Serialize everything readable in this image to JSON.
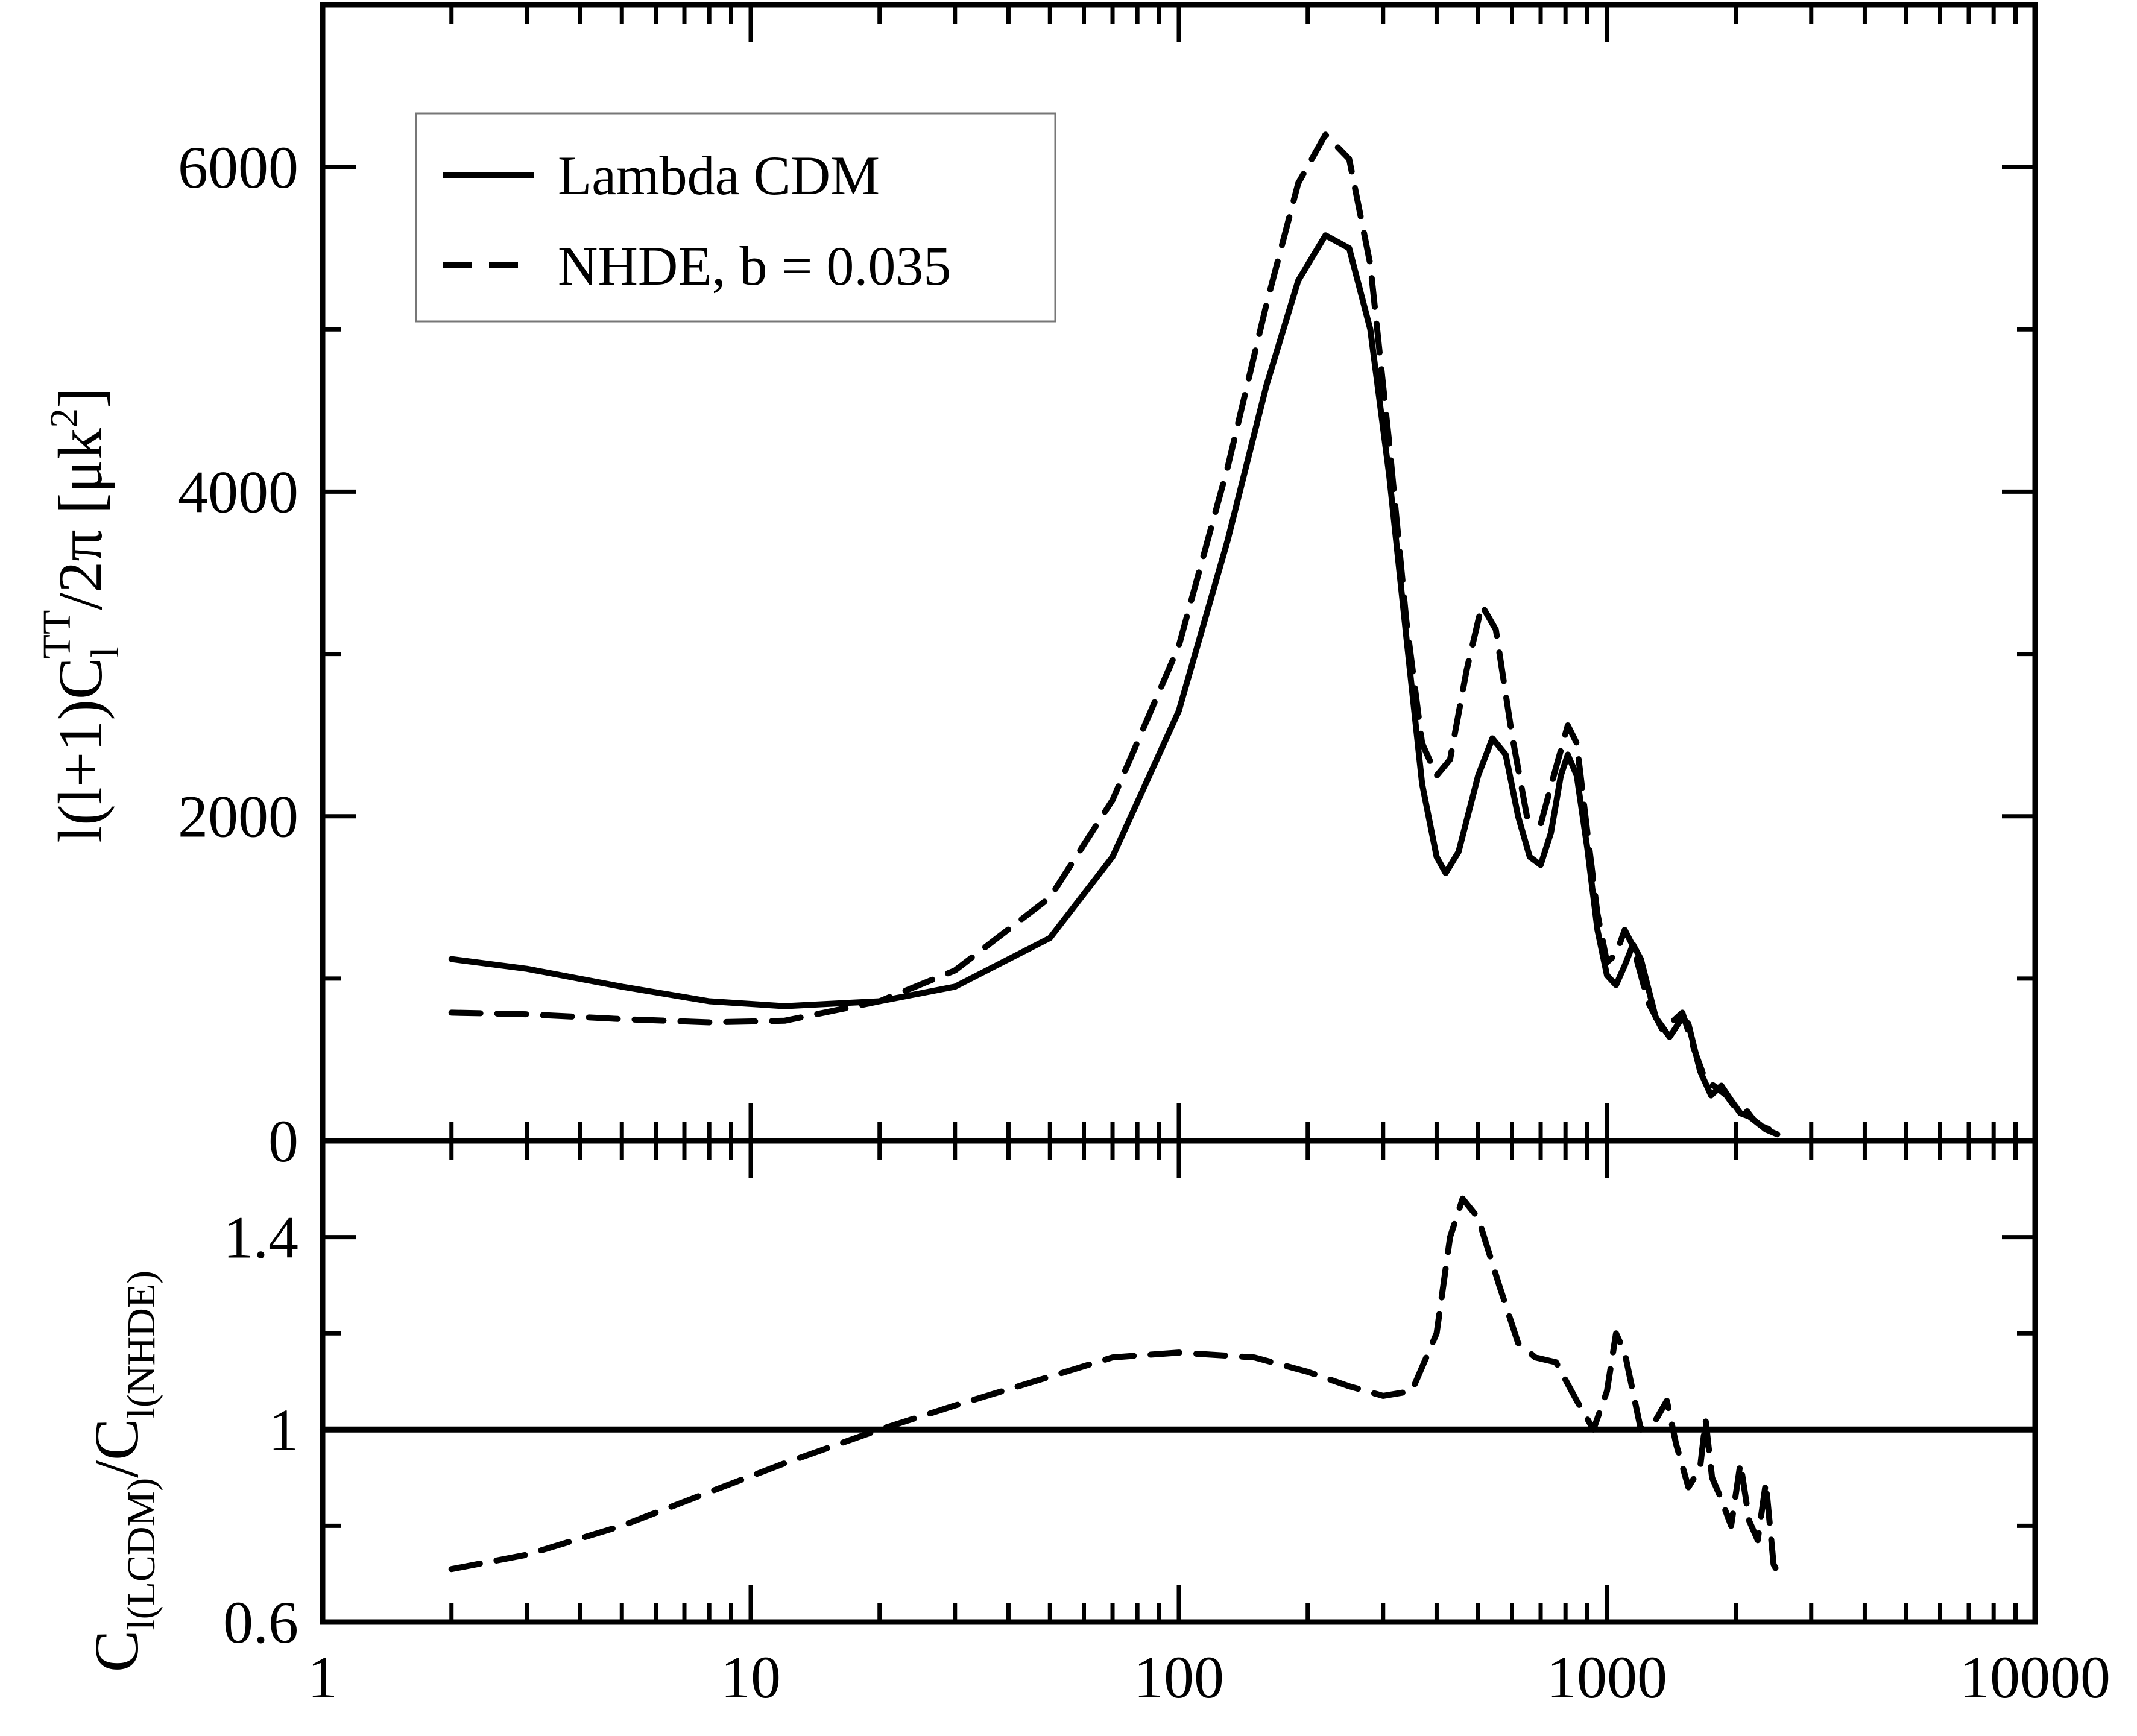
{
  "chart_data": [
    {
      "type": "line",
      "panel": "top",
      "xlabel": "",
      "ylabel": "l(l+1)C_l^TT/2π [μk^2]",
      "ylabel_parts": {
        "prefix": "l(l+1)C",
        "sub": "l",
        "sup": "TT",
        "mid": "/2π [μk",
        "sup2": "2",
        "suffix": "]"
      },
      "x_scale": "log",
      "xlim": [
        1,
        10000
      ],
      "ylim": [
        0,
        7000
      ],
      "y_tick_labels": [
        "0",
        "2000",
        "4000",
        "6000"
      ],
      "legend": {
        "position": "top-left",
        "entries": [
          "Lambda CDM",
          "NHDE, b = 0.035"
        ]
      },
      "series": [
        {
          "name": "Lambda CDM",
          "style": "solid",
          "points": [
            [
              2,
              1120
            ],
            [
              3,
              1060
            ],
            [
              5,
              950
            ],
            [
              8,
              860
            ],
            [
              12,
              830
            ],
            [
              20,
              860
            ],
            [
              30,
              950
            ],
            [
              50,
              1250
            ],
            [
              70,
              1750
            ],
            [
              100,
              2650
            ],
            [
              130,
              3700
            ],
            [
              160,
              4650
            ],
            [
              190,
              5300
            ],
            [
              220,
              5580
            ],
            [
              250,
              5500
            ],
            [
              280,
              5000
            ],
            [
              310,
              4100
            ],
            [
              340,
              3100
            ],
            [
              370,
              2200
            ],
            [
              400,
              1750
            ],
            [
              420,
              1650
            ],
            [
              450,
              1780
            ],
            [
              500,
              2250
            ],
            [
              540,
              2480
            ],
            [
              580,
              2380
            ],
            [
              620,
              2000
            ],
            [
              660,
              1750
            ],
            [
              700,
              1700
            ],
            [
              740,
              1900
            ],
            [
              780,
              2250
            ],
            [
              810,
              2380
            ],
            [
              850,
              2250
            ],
            [
              900,
              1800
            ],
            [
              950,
              1300
            ],
            [
              1000,
              1020
            ],
            [
              1050,
              960
            ],
            [
              1100,
              1080
            ],
            [
              1150,
              1210
            ],
            [
              1200,
              1120
            ],
            [
              1300,
              760
            ],
            [
              1400,
              640
            ],
            [
              1500,
              760
            ],
            [
              1550,
              720
            ],
            [
              1650,
              430
            ],
            [
              1750,
              280
            ],
            [
              1850,
              340
            ],
            [
              1950,
              250
            ],
            [
              2050,
              170
            ],
            [
              2150,
              150
            ],
            [
              2250,
              110
            ],
            [
              2350,
              70
            ],
            [
              2500,
              40
            ]
          ]
        },
        {
          "name": "NHDE, b = 0.035",
          "style": "dashed",
          "points": [
            [
              2,
              790
            ],
            [
              3,
              780
            ],
            [
              5,
              750
            ],
            [
              8,
              730
            ],
            [
              12,
              740
            ],
            [
              20,
              860
            ],
            [
              30,
              1050
            ],
            [
              50,
              1500
            ],
            [
              70,
              2100
            ],
            [
              100,
              3050
            ],
            [
              130,
              4150
            ],
            [
              160,
              5150
            ],
            [
              190,
              5900
            ],
            [
              220,
              6200
            ],
            [
              250,
              6050
            ],
            [
              280,
              5400
            ],
            [
              310,
              4300
            ],
            [
              340,
              3200
            ],
            [
              370,
              2450
            ],
            [
              400,
              2250
            ],
            [
              430,
              2350
            ],
            [
              470,
              2900
            ],
            [
              510,
              3300
            ],
            [
              550,
              3150
            ],
            [
              600,
              2500
            ],
            [
              650,
              2000
            ],
            [
              700,
              1950
            ],
            [
              760,
              2300
            ],
            [
              810,
              2560
            ],
            [
              850,
              2450
            ],
            [
              900,
              1900
            ],
            [
              950,
              1400
            ],
            [
              1000,
              1100
            ],
            [
              1050,
              1150
            ],
            [
              1100,
              1300
            ],
            [
              1150,
              1200
            ],
            [
              1250,
              850
            ],
            [
              1350,
              680
            ],
            [
              1500,
              790
            ],
            [
              1600,
              560
            ],
            [
              1700,
              370
            ],
            [
              1800,
              330
            ],
            [
              1900,
              280
            ],
            [
              2000,
              200
            ],
            [
              2100,
              200
            ],
            [
              2200,
              130
            ],
            [
              2300,
              90
            ],
            [
              2500,
              50
            ]
          ]
        }
      ]
    },
    {
      "type": "line",
      "panel": "bottom",
      "xlabel": "",
      "ylabel": "C_l(LCDM)/C_l(NHDE)",
      "ylabel_parts": {
        "c1": "C",
        "sub1": "l(LCDM)",
        "slash": "/C",
        "sub2": "l(NHDE)"
      },
      "x_scale": "log",
      "xlim": [
        1,
        10000
      ],
      "ylim": [
        0.6,
        1.6
      ],
      "x_tick_labels": [
        "1",
        "10",
        "100",
        "1000",
        "10000"
      ],
      "y_tick_labels": [
        "0.6",
        "1",
        "1.4"
      ],
      "series": [
        {
          "name": "",
          "style": "solid",
          "points": [
            [
              1,
              1.0
            ],
            [
              10000,
              1.0
            ]
          ]
        },
        {
          "name": "",
          "style": "dashed",
          "points": [
            [
              2,
              0.71
            ],
            [
              3,
              0.74
            ],
            [
              5,
              0.8
            ],
            [
              8,
              0.87
            ],
            [
              12,
              0.93
            ],
            [
              20,
              1.0
            ],
            [
              30,
              1.05
            ],
            [
              50,
              1.11
            ],
            [
              70,
              1.15
            ],
            [
              100,
              1.16
            ],
            [
              150,
              1.15
            ],
            [
              200,
              1.12
            ],
            [
              250,
              1.09
            ],
            [
              300,
              1.07
            ],
            [
              350,
              1.08
            ],
            [
              400,
              1.2
            ],
            [
              430,
              1.4
            ],
            [
              460,
              1.48
            ],
            [
              500,
              1.44
            ],
            [
              560,
              1.3
            ],
            [
              620,
              1.18
            ],
            [
              680,
              1.15
            ],
            [
              760,
              1.14
            ],
            [
              850,
              1.06
            ],
            [
              930,
              1.0
            ],
            [
              1000,
              1.08
            ],
            [
              1050,
              1.2
            ],
            [
              1100,
              1.16
            ],
            [
              1200,
              1.0
            ],
            [
              1300,
              1.02
            ],
            [
              1380,
              1.06
            ],
            [
              1450,
              0.97
            ],
            [
              1550,
              0.88
            ],
            [
              1650,
              0.92
            ],
            [
              1700,
              1.02
            ],
            [
              1760,
              0.9
            ],
            [
              1840,
              0.86
            ],
            [
              1950,
              0.8
            ],
            [
              2050,
              0.93
            ],
            [
              2150,
              0.81
            ],
            [
              2250,
              0.77
            ],
            [
              2350,
              0.89
            ],
            [
              2450,
              0.72
            ],
            [
              2550,
              0.69
            ]
          ]
        }
      ]
    }
  ]
}
